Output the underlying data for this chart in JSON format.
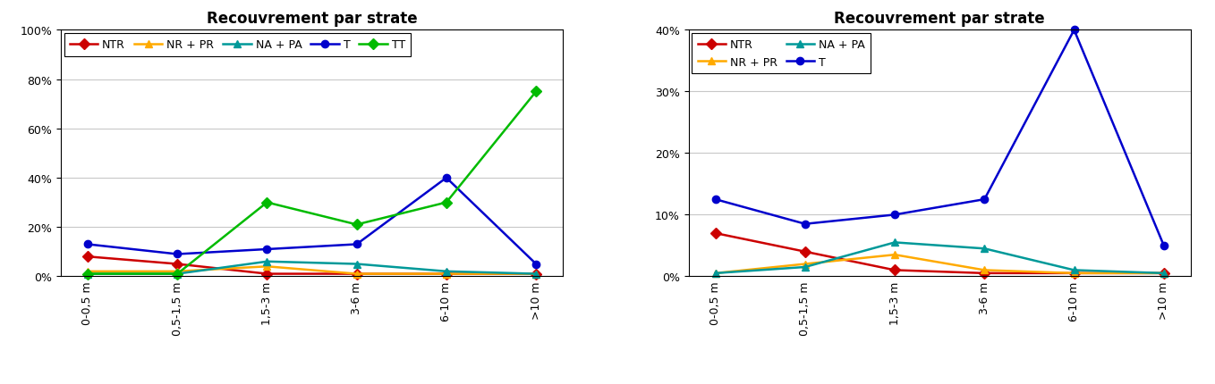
{
  "categories": [
    "0-0,5 m",
    "0,5-1,5 m",
    "1,5-3 m",
    "3-6 m",
    "6-10 m",
    ">10 m"
  ],
  "left_chart": {
    "title": "Recouvrement par strate",
    "ylim": [
      0,
      1.0
    ],
    "yticks": [
      0.0,
      0.2,
      0.4,
      0.6,
      0.8,
      1.0
    ],
    "series": {
      "NTR": {
        "color": "#cc0000",
        "marker": "D",
        "values": [
          0.08,
          0.05,
          0.01,
          0.01,
          0.01,
          0.01
        ]
      },
      "NR + PR": {
        "color": "#ffaa00",
        "marker": "^",
        "values": [
          0.02,
          0.02,
          0.04,
          0.01,
          0.01,
          0.01
        ]
      },
      "NA + PA": {
        "color": "#009999",
        "marker": "^",
        "values": [
          0.01,
          0.01,
          0.06,
          0.05,
          0.02,
          0.01
        ]
      },
      "T": {
        "color": "#0000cc",
        "marker": "o",
        "values": [
          0.13,
          0.09,
          0.11,
          0.13,
          0.4,
          0.05
        ]
      },
      "TT": {
        "color": "#00bb00",
        "marker": "D",
        "values": [
          0.01,
          0.01,
          0.3,
          0.21,
          0.3,
          0.75
        ]
      }
    }
  },
  "right_chart": {
    "title": "Recouvrement par strate",
    "ylim": [
      0,
      0.4
    ],
    "yticks": [
      0.0,
      0.1,
      0.2,
      0.3,
      0.4
    ],
    "series": {
      "NTR": {
        "color": "#cc0000",
        "marker": "D",
        "values": [
          0.07,
          0.04,
          0.01,
          0.005,
          0.005,
          0.005
        ]
      },
      "NR + PR": {
        "color": "#ffaa00",
        "marker": "^",
        "values": [
          0.005,
          0.02,
          0.035,
          0.01,
          0.005,
          0.005
        ]
      },
      "NA + PA": {
        "color": "#009999",
        "marker": "^",
        "values": [
          0.005,
          0.015,
          0.055,
          0.045,
          0.01,
          0.005
        ]
      },
      "T": {
        "color": "#0000cc",
        "marker": "o",
        "values": [
          0.125,
          0.085,
          0.1,
          0.125,
          0.4,
          0.05
        ]
      }
    }
  },
  "title_fontsize": 12,
  "tick_fontsize": 9,
  "legend_fontsize": 9,
  "linewidth": 1.8,
  "markersize": 6,
  "grid_color": "#c8c8c8",
  "bg_color": "#ffffff"
}
